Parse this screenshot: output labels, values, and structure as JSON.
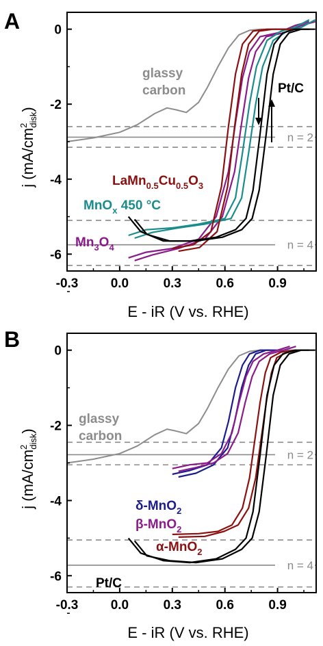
{
  "chart_data": [
    {
      "panel": "A",
      "type": "line",
      "xlabel": "E - iR (V vs. RHE)",
      "ylabel": "j (mA/cm²disk)",
      "ylabel_main": "j (mA/cm",
      "ylabel_sup": "2",
      "ylabel_sub": "disk",
      "ylabel_end": ")",
      "xlim": [
        -0.3,
        1.12
      ],
      "ylim": [
        -6.45,
        0.45
      ],
      "xticks": [
        "-0.3",
        "0.0",
        "0.3",
        "0.6",
        "0.9"
      ],
      "xtick_values": [
        -0.3,
        0.0,
        0.3,
        0.6,
        0.9
      ],
      "yticks": [
        "0",
        "-2",
        "-4",
        "-6"
      ],
      "ytick_values": [
        0,
        -2,
        -4,
        -6
      ],
      "reference_lines": [
        {
          "label": "n = 2",
          "value": -2.88,
          "band": [
            -2.6,
            -3.15
          ]
        },
        {
          "label": "n = 4",
          "value": -5.75,
          "band": [
            -5.1,
            -6.3
          ]
        }
      ],
      "series": [
        {
          "name": "glassy carbon",
          "color": "#8c8c8c",
          "x": [
            -0.3,
            -0.15,
            0.0,
            0.1,
            0.2,
            0.27,
            0.32,
            0.38,
            0.45,
            0.5,
            0.56,
            0.62,
            0.68,
            0.74,
            0.8,
            1.08
          ],
          "y": [
            -3.0,
            -2.9,
            -2.75,
            -2.55,
            -2.25,
            -2.1,
            -2.15,
            -2.22,
            -1.95,
            -1.55,
            -1.0,
            -0.5,
            -0.15,
            -0.03,
            0.0,
            0.0
          ]
        },
        {
          "name": "Mn3O4",
          "color": "#8b1a8b",
          "x": [
            0.05,
            0.15,
            0.3,
            0.45,
            0.55,
            0.62,
            0.66,
            0.7,
            0.74,
            0.8,
            0.9,
            1.0,
            1.08
          ],
          "y": [
            -6.1,
            -5.95,
            -5.85,
            -5.6,
            -5.0,
            -3.8,
            -2.5,
            -1.3,
            -0.6,
            -0.2,
            -0.1,
            0.1,
            0.2
          ]
        },
        {
          "name": "MnOx 450 °C",
          "color": "#1a8c8c",
          "x": [
            0.05,
            0.15,
            0.3,
            0.45,
            0.6,
            0.66,
            0.7,
            0.74,
            0.78,
            0.84,
            0.92,
            1.0,
            1.08
          ],
          "y": [
            -5.5,
            -5.35,
            -5.3,
            -5.2,
            -5.05,
            -4.5,
            -3.3,
            -2.0,
            -1.0,
            -0.3,
            -0.05,
            0.05,
            0.25
          ]
        },
        {
          "name": "LaMn0.5Cu0.5O3",
          "color": "#8b1010",
          "x": [
            0.3,
            0.42,
            0.52,
            0.58,
            0.62,
            0.66,
            0.7,
            0.76,
            0.84,
            0.92,
            1.05
          ],
          "y": [
            -5.85,
            -5.75,
            -5.4,
            -4.2,
            -2.6,
            -1.2,
            -0.4,
            -0.05,
            0.0,
            0.0,
            0.0
          ]
        },
        {
          "name": "Pt/C",
          "color": "#000000",
          "x": [
            0.05,
            0.12,
            0.25,
            0.4,
            0.55,
            0.66,
            0.72,
            0.76,
            0.8,
            0.84,
            0.88,
            0.93,
            1.0,
            1.08
          ],
          "y": [
            -5.0,
            -5.4,
            -5.65,
            -5.65,
            -5.55,
            -5.35,
            -5.05,
            -4.3,
            -2.8,
            -1.2,
            -0.4,
            -0.1,
            0.0,
            0.0
          ]
        }
      ],
      "annotations": {
        "glassy_carbon_line1": "glassy",
        "glassy_carbon_line2": "carbon",
        "ptc": "Pt/C",
        "la_main": "LaMn",
        "la_sub1": "0.5",
        "la_mid": "Cu",
        "la_sub2": "0.5",
        "la_end": "O",
        "la_sub3": "3",
        "mnox_main": "MnO",
        "mnox_sub": "x",
        "mnox_end": " 450 °C",
        "mn3o4_main": "Mn",
        "mn3o4_sub1": "3",
        "mn3o4_mid": "O",
        "mn3o4_sub2": "4"
      }
    },
    {
      "panel": "B",
      "type": "line",
      "xlabel": "E - iR (V vs. RHE)",
      "ylabel": "j (mA/cm²disk)",
      "ylabel_main": "j (mA/cm",
      "ylabel_sup": "2",
      "ylabel_sub": "disk",
      "ylabel_end": ")",
      "xlim": [
        -0.3,
        1.12
      ],
      "ylim": [
        -6.45,
        0.45
      ],
      "xticks": [
        "-0.3",
        "0.0",
        "0.3",
        "0.6",
        "0.9"
      ],
      "xtick_values": [
        -0.3,
        0.0,
        0.3,
        0.6,
        0.9
      ],
      "yticks": [
        "0",
        "-2",
        "-4",
        "-6"
      ],
      "ytick_values": [
        0,
        -2,
        -4,
        -6
      ],
      "reference_lines": [
        {
          "label": "n = 2",
          "value": -2.78,
          "band": [
            -2.45,
            -3.05
          ]
        },
        {
          "label": "n = 4",
          "value": -5.72,
          "band": [
            -5.05,
            -6.3
          ]
        }
      ],
      "series": [
        {
          "name": "glassy carbon",
          "color": "#8c8c8c",
          "x": [
            -0.3,
            -0.15,
            0.0,
            0.1,
            0.2,
            0.27,
            0.32,
            0.38,
            0.45,
            0.5,
            0.56,
            0.62,
            0.68,
            0.74,
            0.8,
            1.08
          ],
          "y": [
            -3.0,
            -2.9,
            -2.75,
            -2.55,
            -2.25,
            -2.1,
            -2.15,
            -2.22,
            -1.95,
            -1.55,
            -1.0,
            -0.5,
            -0.15,
            -0.03,
            0.0,
            0.0
          ]
        },
        {
          "name": "δ-MnO2",
          "color": "#1c1c8c",
          "x": [
            0.3,
            0.4,
            0.5,
            0.58,
            0.62,
            0.66,
            0.7,
            0.74,
            0.8,
            0.86
          ],
          "y": [
            -3.3,
            -3.2,
            -3.05,
            -2.6,
            -1.9,
            -1.0,
            -0.4,
            -0.1,
            0.0,
            0.0
          ]
        },
        {
          "name": "β-MnO2",
          "color": "#8b1a8b",
          "x": [
            0.3,
            0.4,
            0.5,
            0.58,
            0.64,
            0.68,
            0.72,
            0.76,
            0.82,
            0.9,
            0.97
          ],
          "y": [
            -3.15,
            -3.05,
            -3.0,
            -2.75,
            -2.2,
            -1.4,
            -0.7,
            -0.3,
            -0.1,
            0.0,
            0.1
          ]
        },
        {
          "name": "α-MnO2",
          "color": "#8b1010",
          "x": [
            0.3,
            0.45,
            0.56,
            0.64,
            0.7,
            0.74,
            0.77,
            0.8,
            0.83,
            0.86,
            0.92,
            1.0
          ],
          "y": [
            -4.9,
            -4.88,
            -4.82,
            -4.65,
            -4.2,
            -3.4,
            -2.4,
            -1.4,
            -0.6,
            -0.2,
            -0.05,
            0.0
          ]
        },
        {
          "name": "Pt/C",
          "color": "#000000",
          "x": [
            0.05,
            0.12,
            0.25,
            0.4,
            0.55,
            0.66,
            0.72,
            0.76,
            0.8,
            0.84,
            0.88,
            0.93,
            1.0,
            1.08
          ],
          "y": [
            -5.0,
            -5.4,
            -5.6,
            -5.65,
            -5.55,
            -5.3,
            -5.0,
            -4.3,
            -2.8,
            -1.2,
            -0.4,
            -0.1,
            0.0,
            0.0
          ]
        }
      ],
      "annotations": {
        "glassy_carbon_line1": "glassy",
        "glassy_carbon_line2": "carbon",
        "delta_main": "δ-MnO",
        "delta_sub": "2",
        "beta_main": "β-MnO",
        "beta_sub": "2",
        "alpha_main": "α-MnO",
        "alpha_sub": "2",
        "ptc": "Pt/C"
      }
    }
  ]
}
